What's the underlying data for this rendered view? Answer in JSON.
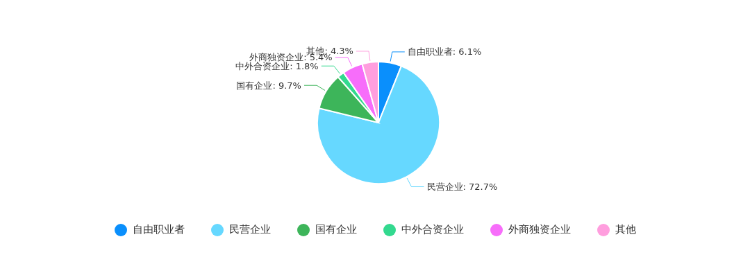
{
  "chart_data": {
    "type": "pie",
    "categories": [
      "自由职业者",
      "民营企业",
      "国有企业",
      "中外合资企业",
      "外商独资企业",
      "其他"
    ],
    "values": [
      6.1,
      72.7,
      9.7,
      1.8,
      5.4,
      4.3
    ],
    "value_labels": [
      "自由职业者: 6.1%",
      "民营企业: 72.7%",
      "国有企业: 9.7%",
      "中外合资企业: 1.8%",
      "外商独资企业: 5.4%",
      "其他: 4.3%"
    ],
    "colors": [
      "#0a8ffc",
      "#66d8ff",
      "#3db55a",
      "#33d98f",
      "#f76dfa",
      "#ff9ede"
    ],
    "legend": "bottom"
  }
}
